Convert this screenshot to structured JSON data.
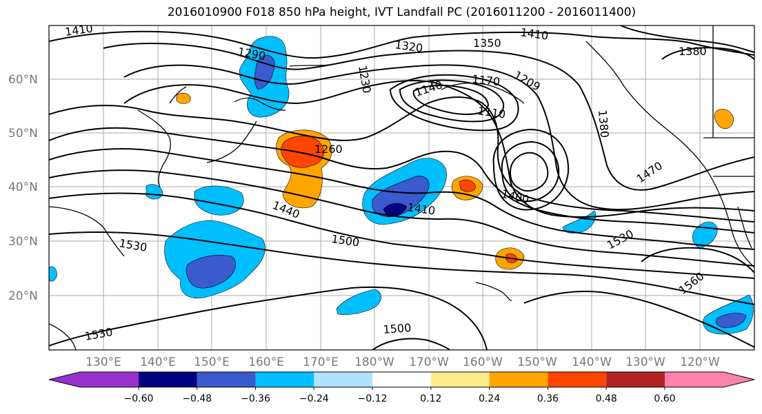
{
  "title": "2016010900 F018 850 hPa height, IVT Landfall PC (2016011200 - 2016011400)",
  "lat_labels": [
    "60°N",
    "50°N",
    "40°N",
    "30°N",
    "20°N"
  ],
  "lon_labels": [
    "130°E",
    "140°E",
    "150°E",
    "160°E",
    "170°E",
    "180°W",
    "170°W",
    "160°W",
    "150°W",
    "140°W",
    "130°W",
    "120°W"
  ],
  "contour_labels": [
    "1410",
    "1290",
    "1320",
    "1350",
    "1410",
    "1380",
    "1230",
    "1140",
    "1170",
    "1209",
    "1110",
    "1380",
    "1260",
    "1470",
    "1440",
    "1410",
    "1400",
    "1500",
    "1530",
    "1530",
    "1560",
    "1530",
    "1500"
  ],
  "colorbar": {
    "ticks": [
      "−0.60",
      "−0.48",
      "−0.36",
      "−0.24",
      "−0.12",
      "0.12",
      "0.24",
      "0.36",
      "0.48",
      "0.60"
    ],
    "colors": [
      "#9932cc",
      "#000080",
      "#3a5bcd",
      "#00bfff",
      "#b0e2ff",
      "#ffffff",
      "#ffec8b",
      "#ffa500",
      "#ff4500",
      "#b22222",
      "#ff82ab"
    ]
  }
}
